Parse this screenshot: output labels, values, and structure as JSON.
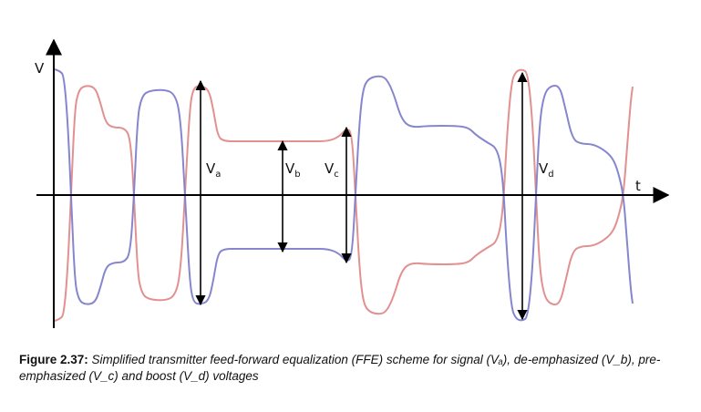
{
  "axes": {
    "y_label": "V",
    "x_label": "t"
  },
  "voltage_labels": [
    {
      "main": "V",
      "sub": "a"
    },
    {
      "main": "V",
      "sub": "b"
    },
    {
      "main": "V",
      "sub": "c"
    },
    {
      "main": "V",
      "sub": "d"
    }
  ],
  "colors": {
    "signal_a": "#e08a8a",
    "signal_b": "#7f7fcc",
    "axes": "#000000"
  },
  "caption": {
    "number": "Figure 2.37:",
    "text": "Simplified transmitter feed-forward equalization (FFE) scheme for signal (Vₐ), de-emphasized (V_b), pre-emphasized (V_c) and boost (V_d) voltages"
  }
}
